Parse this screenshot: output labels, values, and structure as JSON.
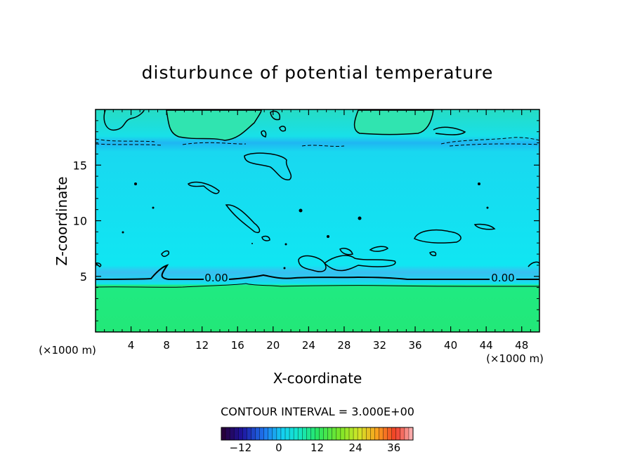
{
  "chart_data": {
    "type": "heatmap",
    "title": "disturbunce of potential temperature",
    "xlabel": "X-coordinate",
    "ylabel": "Z-coordinate",
    "x_units": "(×1000 m)",
    "y_units": "(×1000 m)",
    "xlim": [
      0,
      50
    ],
    "ylim": [
      0,
      20
    ],
    "x_ticks": [
      "4",
      "8",
      "12",
      "16",
      "20",
      "24",
      "28",
      "32",
      "36",
      "40",
      "44",
      "48"
    ],
    "y_ticks": [
      "5",
      "10",
      "15"
    ],
    "contour_interval_label": "CONTOUR INTERVAL = 3.000E+00",
    "contour_labels": [
      "0.00",
      "0.00"
    ],
    "colorbar": {
      "range": [
        -18,
        42
      ],
      "ticks": [
        "-12",
        "0",
        "12",
        "24",
        "36"
      ]
    },
    "field_bands": [
      {
        "z_from": 0.0,
        "z_to": 4.3,
        "approx_value": 12,
        "color": "#22e87a"
      },
      {
        "z_from": 4.3,
        "z_to": 5.5,
        "approx_value": -3,
        "color": "#3cc8f0"
      },
      {
        "z_from": 5.5,
        "z_to": 16.0,
        "approx_value": 0,
        "color": "#14e4f0"
      },
      {
        "z_from": 16.0,
        "z_to": 17.6,
        "approx_value": -6,
        "color": "#20b8f0"
      },
      {
        "z_from": 17.6,
        "z_to": 20.0,
        "approx_value": 3,
        "color": "#2ae0c8"
      }
    ],
    "grid": false,
    "legend": "bottom-center colorbar"
  }
}
